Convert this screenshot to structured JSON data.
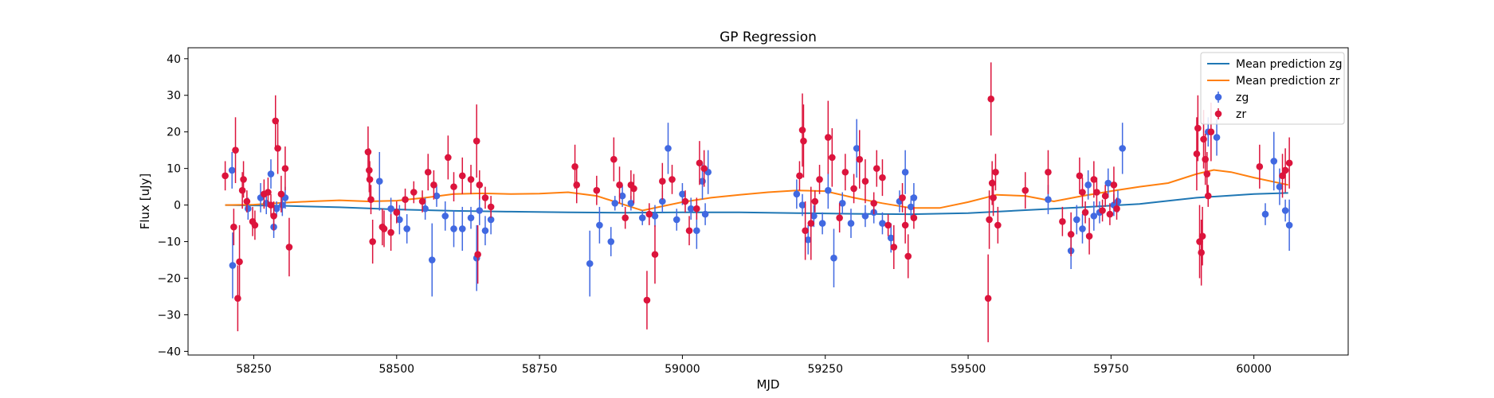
{
  "chart_data": {
    "type": "scatter",
    "title": "GP Regression",
    "xlabel": "MJD",
    "ylabel": "Flux [uJy]",
    "xlim": [
      58135,
      60165
    ],
    "ylim": [
      -41,
      43
    ],
    "xticks": [
      58250,
      58500,
      58750,
      59000,
      59250,
      59500,
      59750,
      60000
    ],
    "yticks": [
      -40,
      -30,
      -20,
      -10,
      0,
      10,
      20,
      30,
      40
    ],
    "grid": false,
    "legend_position": "top-right",
    "legend": [
      {
        "label": "Mean prediction zg",
        "kind": "line",
        "color": "#1f77b4"
      },
      {
        "label": "Mean prediction zr",
        "kind": "line",
        "color": "#ff7f0e"
      },
      {
        "label": "zg",
        "kind": "errorbar",
        "color": "#4169e1"
      },
      {
        "label": "zr",
        "kind": "errorbar",
        "color": "#dc143c"
      }
    ],
    "series": [
      {
        "name": "Mean prediction zg",
        "kind": "line",
        "color": "#1f77b4",
        "x": [
          58200,
          58300,
          58400,
          58500,
          58600,
          58700,
          58800,
          58900,
          59000,
          59100,
          59200,
          59300,
          59400,
          59500,
          59600,
          59700,
          59800,
          59900,
          60000,
          60060
        ],
        "y": [
          0.0,
          -0.2,
          -0.6,
          -1.2,
          -1.6,
          -1.8,
          -2.0,
          -2.1,
          -2.0,
          -2.0,
          -2.2,
          -2.4,
          -2.5,
          -2.2,
          -1.4,
          -0.6,
          0.3,
          2.0,
          3.0,
          3.3
        ]
      },
      {
        "name": "Mean prediction zr",
        "kind": "line",
        "color": "#ff7f0e",
        "x": [
          58200,
          58250,
          58300,
          58350,
          58400,
          58450,
          58500,
          58550,
          58600,
          58650,
          58700,
          58750,
          58800,
          58850,
          58900,
          58930,
          58960,
          59000,
          59050,
          59100,
          59150,
          59200,
          59250,
          59300,
          59350,
          59400,
          59450,
          59500,
          59550,
          59600,
          59650,
          59700,
          59750,
          59800,
          59850,
          59900,
          59930,
          59960,
          60000,
          60060
        ],
        "y": [
          0.0,
          0.1,
          0.6,
          1.0,
          1.3,
          1.0,
          1.2,
          2.0,
          3.0,
          3.2,
          3.0,
          3.1,
          3.5,
          2.5,
          0.0,
          -1.5,
          -0.5,
          0.8,
          2.0,
          2.8,
          3.5,
          4.0,
          3.8,
          2.0,
          0.5,
          -0.8,
          -0.8,
          0.8,
          2.8,
          2.5,
          1.0,
          2.5,
          3.8,
          5.0,
          6.0,
          8.5,
          9.6,
          9.0,
          7.5,
          5.5
        ]
      },
      {
        "name": "zg",
        "kind": "errorbar",
        "color": "#4169e1",
        "points": [
          [
            58212,
            9.5,
            5
          ],
          [
            58213,
            -16.5,
            9
          ],
          [
            58240,
            -1.0,
            3
          ],
          [
            58262,
            2.0,
            4
          ],
          [
            58272,
            0.5,
            3
          ],
          [
            58280,
            8.5,
            4
          ],
          [
            58285,
            -6.0,
            3
          ],
          [
            58290,
            -1.0,
            2
          ],
          [
            58300,
            0.0,
            3
          ],
          [
            58305,
            2.0,
            3
          ],
          [
            58470,
            6.5,
            8
          ],
          [
            58490,
            -1.0,
            3
          ],
          [
            58505,
            -4.0,
            4
          ],
          [
            58518,
            -6.5,
            4
          ],
          [
            58550,
            -1.0,
            3
          ],
          [
            58562,
            -15.0,
            10
          ],
          [
            58570,
            2.5,
            3
          ],
          [
            58585,
            -3.0,
            4
          ],
          [
            58600,
            -6.5,
            5
          ],
          [
            58615,
            -6.5,
            6
          ],
          [
            58630,
            -3.5,
            3
          ],
          [
            58640,
            -14.5,
            9
          ],
          [
            58645,
            -1.5,
            4
          ],
          [
            58655,
            -7.0,
            4
          ],
          [
            58665,
            -4.0,
            4
          ],
          [
            58838,
            -16.0,
            9
          ],
          [
            58855,
            -5.5,
            5
          ],
          [
            58875,
            -10.0,
            4
          ],
          [
            58882,
            0.5,
            2
          ],
          [
            58895,
            2.5,
            3
          ],
          [
            58910,
            0.5,
            2
          ],
          [
            58930,
            -3.5,
            2
          ],
          [
            58952,
            -3.0,
            3
          ],
          [
            58965,
            1.0,
            3
          ],
          [
            58975,
            15.5,
            7
          ],
          [
            58990,
            -4.0,
            3
          ],
          [
            59000,
            3.0,
            3
          ],
          [
            59015,
            -1.0,
            3
          ],
          [
            59025,
            -7.0,
            5
          ],
          [
            59035,
            6.5,
            5
          ],
          [
            59040,
            -2.5,
            3
          ],
          [
            59045,
            9.0,
            6
          ],
          [
            59200,
            3.0,
            4
          ],
          [
            59210,
            0.0,
            3
          ],
          [
            59220,
            -9.5,
            4
          ],
          [
            59230,
            -3.0,
            3
          ],
          [
            59245,
            -5.0,
            3
          ],
          [
            59255,
            4.0,
            5
          ],
          [
            59265,
            -14.5,
            8
          ],
          [
            59280,
            0.5,
            3
          ],
          [
            59295,
            -5.0,
            4
          ],
          [
            59305,
            15.5,
            8
          ],
          [
            59320,
            -3.0,
            3
          ],
          [
            59335,
            -2.0,
            3
          ],
          [
            59350,
            -5.0,
            3
          ],
          [
            59365,
            -9.0,
            4
          ],
          [
            59380,
            1.0,
            3
          ],
          [
            59390,
            9.0,
            6
          ],
          [
            59400,
            -0.5,
            3
          ],
          [
            59405,
            2.0,
            4
          ],
          [
            59640,
            1.5,
            4
          ],
          [
            59680,
            -12.5,
            5
          ],
          [
            59690,
            -4.0,
            4
          ],
          [
            59700,
            -6.5,
            4
          ],
          [
            59710,
            5.5,
            4
          ],
          [
            59720,
            -3.0,
            4
          ],
          [
            59730,
            -2.0,
            3
          ],
          [
            59745,
            6.0,
            4
          ],
          [
            59755,
            0.0,
            3
          ],
          [
            59762,
            1.0,
            3
          ],
          [
            59770,
            15.5,
            7
          ],
          [
            59920,
            20.0,
            4
          ],
          [
            59935,
            18.5,
            5
          ],
          [
            60020,
            -2.5,
            3
          ],
          [
            60035,
            12.0,
            8
          ],
          [
            60045,
            5.0,
            5
          ],
          [
            60055,
            -1.5,
            3
          ],
          [
            60062,
            -5.5,
            7
          ]
        ]
      },
      {
        "name": "zr",
        "kind": "errorbar",
        "color": "#dc143c",
        "points": [
          [
            58200,
            8.0,
            4
          ],
          [
            58215,
            -6.0,
            5
          ],
          [
            58218,
            15.0,
            9
          ],
          [
            58222,
            -25.5,
            9
          ],
          [
            58225,
            -15.5,
            10
          ],
          [
            58230,
            4.0,
            5
          ],
          [
            58232,
            7.0,
            5
          ],
          [
            58238,
            1.0,
            3
          ],
          [
            58248,
            -4.5,
            4
          ],
          [
            58252,
            -5.5,
            4
          ],
          [
            58268,
            3.0,
            4
          ],
          [
            58275,
            3.5,
            4
          ],
          [
            58280,
            0.0,
            3
          ],
          [
            58285,
            -3.0,
            4
          ],
          [
            58288,
            23.0,
            7
          ],
          [
            58292,
            15.5,
            7
          ],
          [
            58298,
            3.0,
            5
          ],
          [
            58305,
            10.0,
            6
          ],
          [
            58312,
            -11.5,
            8
          ],
          [
            58450,
            14.5,
            7
          ],
          [
            58452,
            9.5,
            6
          ],
          [
            58453,
            7.0,
            5
          ],
          [
            58455,
            1.5,
            4
          ],
          [
            58458,
            -10.0,
            6
          ],
          [
            58475,
            -6.0,
            5
          ],
          [
            58478,
            -6.5,
            5
          ],
          [
            58490,
            -7.5,
            5
          ],
          [
            58500,
            -2.0,
            3
          ],
          [
            58515,
            1.5,
            3
          ],
          [
            58530,
            3.5,
            3
          ],
          [
            58545,
            1.0,
            3
          ],
          [
            58555,
            9.0,
            5
          ],
          [
            58565,
            5.5,
            4
          ],
          [
            58590,
            13.0,
            6
          ],
          [
            58600,
            5.0,
            4
          ],
          [
            58615,
            8.0,
            5
          ],
          [
            58630,
            7.0,
            4
          ],
          [
            58640,
            17.5,
            10
          ],
          [
            58642,
            -13.5,
            8
          ],
          [
            58645,
            5.5,
            4
          ],
          [
            58655,
            2.0,
            3
          ],
          [
            58665,
            -0.5,
            3
          ],
          [
            58812,
            10.5,
            6
          ],
          [
            58815,
            5.5,
            5
          ],
          [
            58850,
            4.0,
            4
          ],
          [
            58880,
            12.5,
            6
          ],
          [
            58890,
            5.5,
            5
          ],
          [
            58900,
            -3.5,
            3
          ],
          [
            58910,
            5.5,
            4
          ],
          [
            58915,
            4.5,
            4
          ],
          [
            58938,
            -26.0,
            8
          ],
          [
            58942,
            -2.5,
            3
          ],
          [
            58952,
            -13.5,
            8
          ],
          [
            58965,
            6.5,
            5
          ],
          [
            58982,
            7.0,
            4
          ],
          [
            59005,
            1.0,
            3
          ],
          [
            59012,
            -7.0,
            4
          ],
          [
            59025,
            -1.0,
            3
          ],
          [
            59030,
            11.5,
            6
          ],
          [
            59038,
            10.0,
            5
          ],
          [
            59205,
            8.0,
            4
          ],
          [
            59210,
            20.5,
            10
          ],
          [
            59212,
            17.5,
            10
          ],
          [
            59215,
            -7.0,
            8
          ],
          [
            59225,
            -5.0,
            10
          ],
          [
            59232,
            1.0,
            3
          ],
          [
            59240,
            7.0,
            4
          ],
          [
            59255,
            18.5,
            10
          ],
          [
            59262,
            13.0,
            8
          ],
          [
            59275,
            -3.5,
            4
          ],
          [
            59285,
            9.0,
            5
          ],
          [
            59300,
            4.5,
            4
          ],
          [
            59310,
            12.5,
            8
          ],
          [
            59320,
            6.5,
            6
          ],
          [
            59335,
            0.5,
            3
          ],
          [
            59340,
            10.0,
            5
          ],
          [
            59350,
            7.5,
            5
          ],
          [
            59360,
            -5.5,
            3
          ],
          [
            59370,
            -11.5,
            6
          ],
          [
            59385,
            2.0,
            4
          ],
          [
            59390,
            -5.5,
            5
          ],
          [
            59395,
            -14.0,
            6
          ],
          [
            59405,
            -3.5,
            3
          ],
          [
            59535,
            -25.5,
            12
          ],
          [
            59537,
            -4.0,
            8
          ],
          [
            59540,
            29.0,
            10
          ],
          [
            59542,
            6.0,
            6
          ],
          [
            59544,
            2.0,
            5
          ],
          [
            59548,
            9.0,
            5
          ],
          [
            59552,
            -5.5,
            5
          ],
          [
            59600,
            4.0,
            5
          ],
          [
            59640,
            9.0,
            6
          ],
          [
            59665,
            -4.5,
            4
          ],
          [
            59680,
            -8.0,
            6
          ],
          [
            59695,
            8.0,
            5
          ],
          [
            59700,
            3.5,
            4
          ],
          [
            59705,
            -2.0,
            3
          ],
          [
            59712,
            -8.5,
            5
          ],
          [
            59720,
            7.0,
            5
          ],
          [
            59725,
            3.5,
            4
          ],
          [
            59735,
            -1.5,
            3
          ],
          [
            59740,
            2.5,
            3
          ],
          [
            59748,
            -2.5,
            3
          ],
          [
            59755,
            5.5,
            5
          ],
          [
            59760,
            -1.0,
            3
          ],
          [
            59900,
            14.0,
            10
          ],
          [
            59902,
            21.0,
            9
          ],
          [
            59905,
            -10.0,
            10
          ],
          [
            59908,
            -13.0,
            9
          ],
          [
            59910,
            -8.5,
            8
          ],
          [
            59912,
            18.0,
            8
          ],
          [
            59915,
            12.5,
            7
          ],
          [
            59918,
            8.5,
            6
          ],
          [
            59920,
            2.5,
            3
          ],
          [
            59925,
            20.0,
            8
          ],
          [
            60010,
            10.5,
            6
          ],
          [
            60050,
            8.0,
            6
          ],
          [
            60055,
            9.5,
            6
          ],
          [
            60062,
            11.5,
            7
          ]
        ]
      }
    ]
  }
}
